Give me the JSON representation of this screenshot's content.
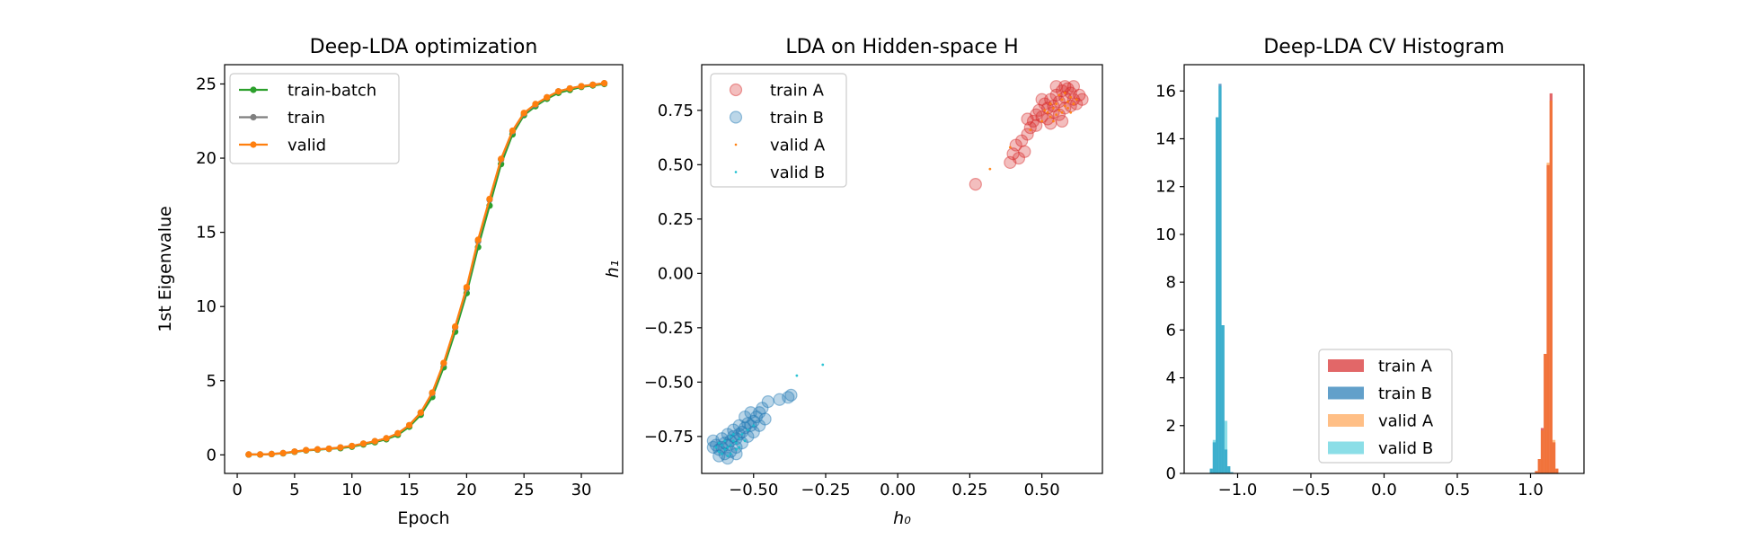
{
  "chart_data": [
    {
      "type": "line",
      "title": "Deep-LDA optimization",
      "xlabel": "Epoch",
      "ylabel": "1st Eigenvalue",
      "xlim": [
        -1.1,
        33.6
      ],
      "ylim": [
        -1.25,
        26.3
      ],
      "xticks": [
        0,
        5,
        10,
        15,
        20,
        25,
        30
      ],
      "yticks": [
        0,
        5,
        10,
        15,
        20,
        25
      ],
      "legend": "top-left",
      "grid": false,
      "series": [
        {
          "name": "train-batch",
          "color": "#2ca02c",
          "marker": "circle",
          "x": [
            1,
            2,
            3,
            4,
            5,
            6,
            7,
            8,
            9,
            10,
            11,
            12,
            13,
            14,
            15,
            16,
            17,
            18,
            19,
            20,
            21,
            22,
            23,
            24,
            25,
            26,
            27,
            28,
            29,
            30,
            31,
            32
          ],
          "y": [
            0.02,
            0.02,
            0.05,
            0.1,
            0.2,
            0.3,
            0.35,
            0.4,
            0.45,
            0.55,
            0.7,
            0.85,
            1.05,
            1.35,
            1.9,
            2.7,
            3.9,
            5.9,
            8.3,
            10.9,
            14.0,
            16.8,
            19.6,
            21.6,
            22.9,
            23.5,
            24.0,
            24.4,
            24.6,
            24.8,
            24.9,
            25.0
          ]
        },
        {
          "name": "train",
          "color": "#7f7f7f",
          "marker": "circle",
          "x": [
            1,
            2,
            3,
            4,
            5,
            6,
            7,
            8,
            9,
            10,
            11,
            12,
            13,
            14,
            15,
            16,
            17,
            18,
            19,
            20,
            21,
            22,
            23,
            24,
            25,
            26,
            27,
            28,
            29,
            30,
            31,
            32
          ],
          "y": [
            0.03,
            0.03,
            0.06,
            0.12,
            0.22,
            0.32,
            0.37,
            0.42,
            0.5,
            0.6,
            0.76,
            0.92,
            1.12,
            1.45,
            2.0,
            2.85,
            4.15,
            6.15,
            8.6,
            11.2,
            14.4,
            17.2,
            19.9,
            21.8,
            23.0,
            23.6,
            24.1,
            24.5,
            24.7,
            24.85,
            24.95,
            25.05
          ]
        },
        {
          "name": "valid",
          "color": "#ff7f0e",
          "marker": "circle",
          "x": [
            1,
            2,
            3,
            4,
            5,
            6,
            7,
            8,
            9,
            10,
            11,
            12,
            13,
            14,
            15,
            16,
            17,
            18,
            19,
            20,
            21,
            22,
            23,
            24,
            25,
            26,
            27,
            28,
            29,
            30,
            31,
            32
          ],
          "y": [
            0.03,
            0.03,
            0.06,
            0.12,
            0.22,
            0.32,
            0.37,
            0.42,
            0.5,
            0.6,
            0.76,
            0.92,
            1.12,
            1.45,
            2.0,
            2.85,
            4.2,
            6.2,
            8.65,
            11.3,
            14.5,
            17.25,
            19.95,
            21.85,
            23.05,
            23.65,
            24.1,
            24.5,
            24.7,
            24.85,
            24.95,
            25.05
          ]
        }
      ]
    },
    {
      "type": "scatter",
      "title": "LDA on Hidden-space H",
      "xlabel": "h₀",
      "ylabel": "h₁",
      "xlim": [
        -0.68,
        0.71
      ],
      "ylim": [
        -0.92,
        0.96
      ],
      "xticks": [
        -0.5,
        -0.25,
        0.0,
        0.25,
        0.5
      ],
      "xtick_labels": [
        "−0.50",
        "−0.25",
        "0.00",
        "0.25",
        "0.50"
      ],
      "yticks": [
        -0.75,
        -0.5,
        -0.25,
        0.0,
        0.25,
        0.5,
        0.75
      ],
      "ytick_labels": [
        "−0.75",
        "−0.50",
        "−0.25",
        "0.00",
        "0.25",
        "0.50",
        "0.75"
      ],
      "legend": "top-left",
      "grid": false,
      "series": [
        {
          "name": "train A",
          "color": "#d62728",
          "marker": "large-circle-translucent",
          "points": [
            [
              0.27,
              0.41
            ],
            [
              0.4,
              0.55
            ],
            [
              0.39,
              0.51
            ],
            [
              0.41,
              0.59
            ],
            [
              0.43,
              0.61
            ],
            [
              0.44,
              0.56
            ],
            [
              0.42,
              0.53
            ],
            [
              0.45,
              0.64
            ],
            [
              0.46,
              0.67
            ],
            [
              0.45,
              0.71
            ],
            [
              0.47,
              0.7
            ],
            [
              0.48,
              0.73
            ],
            [
              0.49,
              0.75
            ],
            [
              0.5,
              0.72
            ],
            [
              0.51,
              0.78
            ],
            [
              0.52,
              0.76
            ],
            [
              0.53,
              0.8
            ],
            [
              0.54,
              0.77
            ],
            [
              0.55,
              0.82
            ],
            [
              0.56,
              0.79
            ],
            [
              0.57,
              0.84
            ],
            [
              0.58,
              0.81
            ],
            [
              0.59,
              0.85
            ],
            [
              0.6,
              0.83
            ],
            [
              0.61,
              0.8
            ],
            [
              0.62,
              0.78
            ],
            [
              0.63,
              0.82
            ],
            [
              0.64,
              0.8
            ],
            [
              0.52,
              0.71
            ],
            [
              0.54,
              0.74
            ],
            [
              0.56,
              0.73
            ],
            [
              0.58,
              0.76
            ],
            [
              0.6,
              0.77
            ],
            [
              0.55,
              0.86
            ],
            [
              0.58,
              0.86
            ],
            [
              0.61,
              0.86
            ],
            [
              0.5,
              0.8
            ],
            [
              0.53,
              0.69
            ],
            [
              0.57,
              0.7
            ],
            [
              0.48,
              0.68
            ]
          ]
        },
        {
          "name": "train B",
          "color": "#1f77b4",
          "marker": "large-circle-translucent",
          "points": [
            [
              -0.37,
              -0.56
            ],
            [
              -0.38,
              -0.57
            ],
            [
              -0.41,
              -0.58
            ],
            [
              -0.45,
              -0.59
            ],
            [
              -0.47,
              -0.62
            ],
            [
              -0.48,
              -0.64
            ],
            [
              -0.49,
              -0.66
            ],
            [
              -0.5,
              -0.68
            ],
            [
              -0.51,
              -0.7
            ],
            [
              -0.52,
              -0.69
            ],
            [
              -0.53,
              -0.71
            ],
            [
              -0.54,
              -0.73
            ],
            [
              -0.55,
              -0.74
            ],
            [
              -0.56,
              -0.76
            ],
            [
              -0.57,
              -0.75
            ],
            [
              -0.58,
              -0.77
            ],
            [
              -0.59,
              -0.79
            ],
            [
              -0.6,
              -0.78
            ],
            [
              -0.61,
              -0.8
            ],
            [
              -0.62,
              -0.81
            ],
            [
              -0.63,
              -0.79
            ],
            [
              -0.64,
              -0.8
            ],
            [
              -0.6,
              -0.83
            ],
            [
              -0.58,
              -0.82
            ],
            [
              -0.56,
              -0.8
            ],
            [
              -0.54,
              -0.78
            ],
            [
              -0.52,
              -0.75
            ],
            [
              -0.5,
              -0.73
            ],
            [
              -0.48,
              -0.7
            ],
            [
              -0.46,
              -0.67
            ],
            [
              -0.55,
              -0.7
            ],
            [
              -0.57,
              -0.72
            ],
            [
              -0.59,
              -0.74
            ],
            [
              -0.61,
              -0.76
            ],
            [
              -0.53,
              -0.66
            ],
            [
              -0.51,
              -0.64
            ],
            [
              -0.62,
              -0.84
            ],
            [
              -0.59,
              -0.85
            ],
            [
              -0.56,
              -0.83
            ],
            [
              -0.64,
              -0.77
            ]
          ]
        },
        {
          "name": "valid A",
          "color": "#ff7f0e",
          "marker": "small-dot",
          "points": [
            [
              0.32,
              0.48
            ],
            [
              0.39,
              0.58
            ],
            [
              0.46,
              0.66
            ],
            [
              0.5,
              0.7
            ],
            [
              0.52,
              0.74
            ],
            [
              0.53,
              0.72
            ],
            [
              0.54,
              0.76
            ],
            [
              0.55,
              0.78
            ],
            [
              0.56,
              0.75
            ],
            [
              0.57,
              0.8
            ],
            [
              0.58,
              0.77
            ],
            [
              0.59,
              0.79
            ],
            [
              0.6,
              0.81
            ],
            [
              0.61,
              0.78
            ],
            [
              0.55,
              0.73
            ],
            [
              0.57,
              0.74
            ],
            [
              0.59,
              0.76
            ],
            [
              0.56,
              0.82
            ],
            [
              0.58,
              0.83
            ],
            [
              0.53,
              0.78
            ],
            [
              0.6,
              0.74
            ],
            [
              0.54,
              0.7
            ],
            [
              0.62,
              0.8
            ],
            [
              0.51,
              0.75
            ]
          ]
        },
        {
          "name": "valid B",
          "color": "#17becf",
          "marker": "small-dot",
          "points": [
            [
              -0.26,
              -0.42
            ],
            [
              -0.35,
              -0.47
            ],
            [
              -0.5,
              -0.7
            ],
            [
              -0.52,
              -0.72
            ],
            [
              -0.54,
              -0.74
            ],
            [
              -0.55,
              -0.76
            ],
            [
              -0.56,
              -0.78
            ],
            [
              -0.57,
              -0.77
            ],
            [
              -0.58,
              -0.79
            ],
            [
              -0.59,
              -0.8
            ],
            [
              -0.6,
              -0.81
            ],
            [
              -0.61,
              -0.79
            ],
            [
              -0.62,
              -0.82
            ],
            [
              -0.58,
              -0.83
            ],
            [
              -0.56,
              -0.81
            ],
            [
              -0.6,
              -0.77
            ],
            [
              -0.62,
              -0.78
            ],
            [
              -0.57,
              -0.74
            ],
            [
              -0.59,
              -0.84
            ],
            [
              -0.63,
              -0.8
            ],
            [
              -0.55,
              -0.8
            ],
            [
              -0.61,
              -0.83
            ],
            [
              -0.53,
              -0.77
            ],
            [
              -0.58,
              -0.75
            ]
          ]
        }
      ]
    },
    {
      "type": "histogram",
      "title": "Deep-LDA CV Histogram",
      "xlabel": "",
      "ylabel": "",
      "xlim": [
        -1.365,
        1.365
      ],
      "ylim": [
        0,
        17.1
      ],
      "xticks": [
        -1.0,
        -0.5,
        0.0,
        0.5,
        1.0
      ],
      "xtick_labels": [
        "−1.0",
        "−0.5",
        "0.0",
        "0.5",
        "1.0"
      ],
      "yticks": [
        0,
        2,
        4,
        6,
        8,
        10,
        12,
        14,
        16
      ],
      "legend": "lower-center",
      "grid": false,
      "series": [
        {
          "name": "train A",
          "color": "#d62728",
          "opacity": 0.7,
          "bins": [
            [
              1.03,
              1.05,
              0.1
            ],
            [
              1.05,
              1.07,
              0.6
            ],
            [
              1.07,
              1.09,
              1.9
            ],
            [
              1.09,
              1.11,
              5.0
            ],
            [
              1.11,
              1.13,
              12.9
            ],
            [
              1.13,
              1.15,
              15.9
            ],
            [
              1.15,
              1.17,
              1.3
            ],
            [
              1.17,
              1.19,
              0.2
            ]
          ]
        },
        {
          "name": "train B",
          "color": "#1f77b4",
          "opacity": 0.7,
          "bins": [
            [
              -1.19,
              -1.17,
              0.2
            ],
            [
              -1.17,
              -1.15,
              1.3
            ],
            [
              -1.15,
              -1.13,
              14.9
            ],
            [
              -1.13,
              -1.11,
              16.3
            ],
            [
              -1.11,
              -1.09,
              6.2
            ],
            [
              -1.09,
              -1.07,
              1.0
            ],
            [
              -1.07,
              -1.05,
              0.3
            ],
            [
              -1.05,
              -1.03,
              0.05
            ]
          ]
        },
        {
          "name": "valid A",
          "color": "#ff7f0e",
          "opacity": 0.5,
          "bins": [
            [
              1.03,
              1.05,
              0.1
            ],
            [
              1.05,
              1.07,
              0.6
            ],
            [
              1.07,
              1.09,
              1.8
            ],
            [
              1.09,
              1.11,
              5.0
            ],
            [
              1.11,
              1.13,
              13.0
            ],
            [
              1.13,
              1.15,
              15.6
            ],
            [
              1.15,
              1.17,
              1.4
            ],
            [
              1.17,
              1.19,
              0.2
            ]
          ]
        },
        {
          "name": "valid B",
          "color": "#17becf",
          "opacity": 0.5,
          "bins": [
            [
              -1.19,
              -1.17,
              0.2
            ],
            [
              -1.17,
              -1.15,
              1.4
            ],
            [
              -1.15,
              -1.13,
              14.9
            ],
            [
              -1.13,
              -1.11,
              16.2
            ],
            [
              -1.11,
              -1.09,
              6.2
            ],
            [
              -1.09,
              -1.07,
              2.2
            ],
            [
              -1.07,
              -1.05,
              0.3
            ],
            [
              -1.05,
              -1.03,
              0.05
            ]
          ]
        }
      ]
    }
  ]
}
